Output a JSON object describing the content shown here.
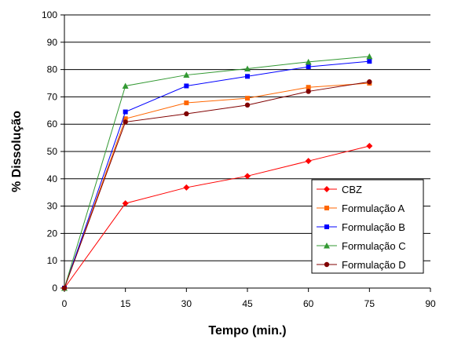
{
  "chart_data": {
    "type": "line",
    "title": "",
    "xlabel": "Tempo (min.)",
    "ylabel": "% Dissolução",
    "xlim": [
      0,
      90
    ],
    "ylim": [
      0,
      100
    ],
    "xticks": [
      0,
      15,
      30,
      45,
      60,
      75,
      90
    ],
    "yticks": [
      0,
      10,
      20,
      30,
      40,
      50,
      60,
      70,
      80,
      90,
      100
    ],
    "grid": "horizontal",
    "legend_position": "bottom-right",
    "x": [
      0,
      15,
      30,
      45,
      60,
      75
    ],
    "series": [
      {
        "name": "CBZ",
        "color": "#ff0000",
        "marker": "diamond",
        "values": [
          0,
          31,
          36.8,
          41,
          46.5,
          52
        ]
      },
      {
        "name": "Formulação A",
        "color": "#ff6600",
        "marker": "square",
        "values": [
          0,
          62,
          67.8,
          69.5,
          73.5,
          75
        ]
      },
      {
        "name": "Formulação B",
        "color": "#0000ff",
        "marker": "square",
        "values": [
          0,
          64.5,
          74,
          77.5,
          81,
          83
        ]
      },
      {
        "name": "Formulação C",
        "color": "#339933",
        "marker": "triangle",
        "values": [
          0,
          74,
          78,
          80.3,
          82.8,
          84.8
        ]
      },
      {
        "name": "Formulação D",
        "color": "#800000",
        "marker": "circle",
        "values": [
          0,
          60.8,
          63.8,
          67,
          72,
          75.5
        ]
      }
    ]
  }
}
